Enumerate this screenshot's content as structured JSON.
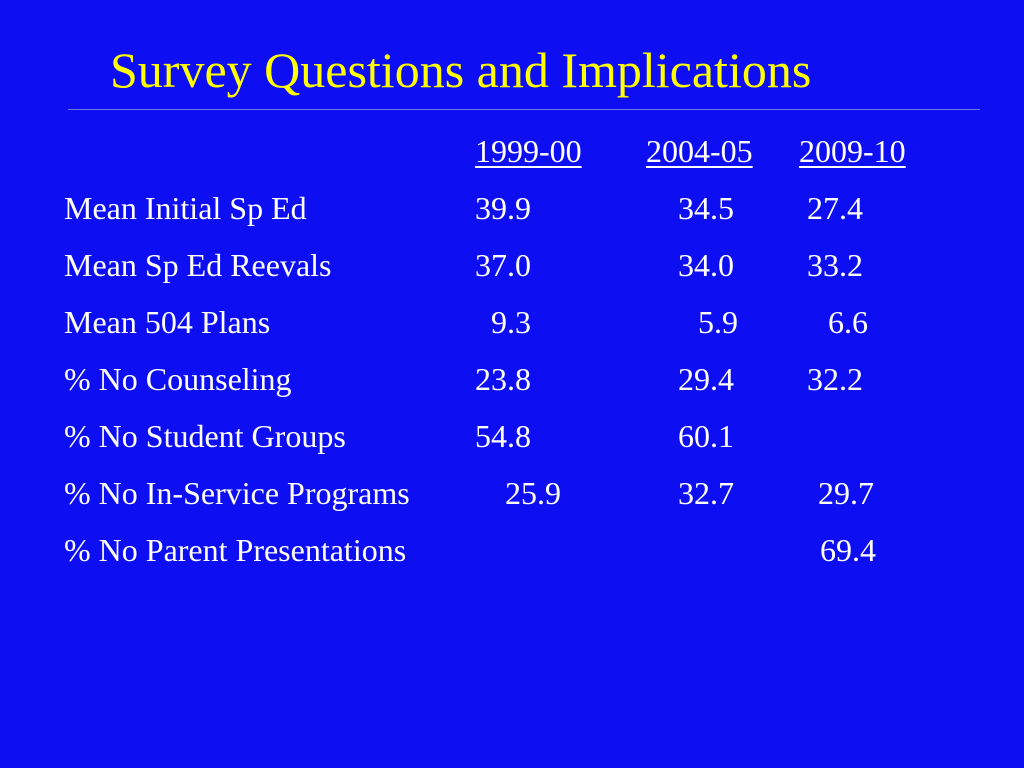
{
  "colors": {
    "background": "#0d0ff2",
    "title": "#ffff00",
    "text": "#ffffff",
    "rule": "#6c7bd4"
  },
  "slide": {
    "title": "Survey Questions and Implications",
    "headers": [
      "1999-00",
      "2004-05",
      "2009-10"
    ],
    "rows": [
      {
        "label": "Mean Initial Sp Ed",
        "values": [
          "39.9",
          "34.5",
          "27.4"
        ]
      },
      {
        "label": "Mean Sp Ed Reevals",
        "values": [
          "37.0",
          "34.0",
          "33.2"
        ]
      },
      {
        "label": "Mean 504 Plans",
        "values": [
          "9.3",
          "5.9",
          "6.6"
        ]
      },
      {
        "label": "% No Counseling",
        "values": [
          "23.8",
          "29.4",
          "32.2"
        ]
      },
      {
        "label": "% No Student Groups",
        "values": [
          "54.8",
          "60.1",
          ""
        ]
      },
      {
        "label": "% No In-Service Programs",
        "values": [
          "25.9",
          "32.7",
          "29.7"
        ]
      },
      {
        "label": "% No Parent Presentations",
        "values": [
          "",
          "",
          "69.4"
        ]
      }
    ]
  }
}
